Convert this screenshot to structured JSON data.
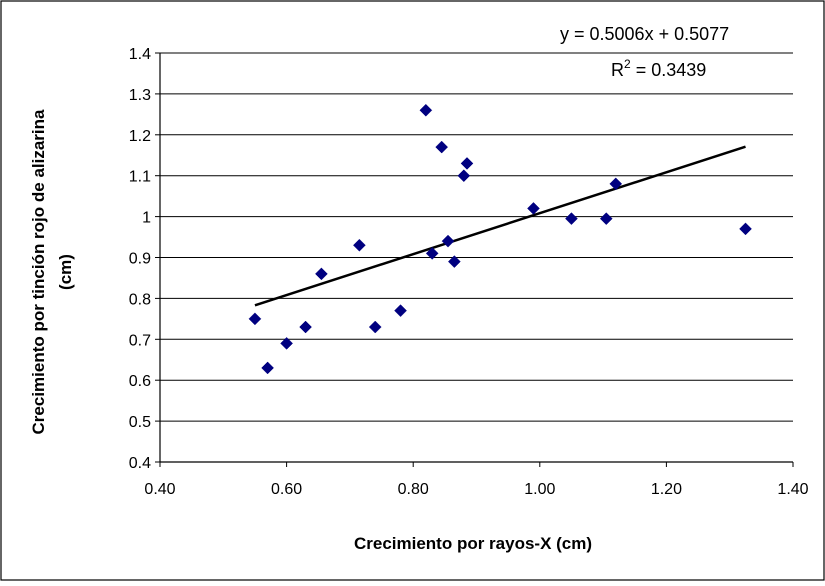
{
  "chart_data": {
    "type": "scatter",
    "title": "",
    "xlabel": "Crecimiento por rayos-X (cm)",
    "ylabel": "Crecimiento por tinción rojo de alizarina (cm)",
    "ylabel_lines": [
      "Crecimiento por tinción rojo de alizarina",
      "(cm)"
    ],
    "xlim": [
      0.4,
      1.4
    ],
    "ylim": [
      0.4,
      1.4
    ],
    "xticks": [
      0.4,
      0.6,
      0.8,
      1.0,
      1.2,
      1.4
    ],
    "xtick_labels": [
      "0.40",
      "0.60",
      "0.80",
      "1.00",
      "1.20",
      "1.40"
    ],
    "yticks": [
      0.4,
      0.5,
      0.6,
      0.7,
      0.8,
      0.9,
      1.0,
      1.1,
      1.2,
      1.3,
      1.4
    ],
    "ytick_labels": [
      "0.4",
      "0.5",
      "0.6",
      "0.7",
      "0.8",
      "0.9",
      "1",
      "1.1",
      "1.2",
      "1.3",
      "1.4"
    ],
    "grid": "horizontal",
    "legend": "none",
    "marker_color": "#000080",
    "trendline_color": "#000000",
    "points": [
      {
        "x": 0.55,
        "y": 0.75
      },
      {
        "x": 0.57,
        "y": 0.63
      },
      {
        "x": 0.6,
        "y": 0.69
      },
      {
        "x": 0.63,
        "y": 0.73
      },
      {
        "x": 0.655,
        "y": 0.86
      },
      {
        "x": 0.715,
        "y": 0.93
      },
      {
        "x": 0.74,
        "y": 0.73
      },
      {
        "x": 0.78,
        "y": 0.77
      },
      {
        "x": 0.82,
        "y": 1.26
      },
      {
        "x": 0.83,
        "y": 0.91
      },
      {
        "x": 0.845,
        "y": 1.17
      },
      {
        "x": 0.855,
        "y": 0.94
      },
      {
        "x": 0.865,
        "y": 0.89
      },
      {
        "x": 0.88,
        "y": 1.1
      },
      {
        "x": 0.885,
        "y": 1.13
      },
      {
        "x": 0.99,
        "y": 1.02
      },
      {
        "x": 1.05,
        "y": 0.995
      },
      {
        "x": 1.105,
        "y": 0.995
      },
      {
        "x": 1.12,
        "y": 1.08
      },
      {
        "x": 1.325,
        "y": 0.97
      }
    ],
    "trendline": {
      "slope": 0.5006,
      "intercept": 0.5077,
      "x_range": [
        0.55,
        1.325
      ],
      "equation": "y = 0.5006x + 0.5077",
      "r2_prefix": "R",
      "r2_superscript": "2",
      "r2_value": " = 0.3439"
    }
  }
}
